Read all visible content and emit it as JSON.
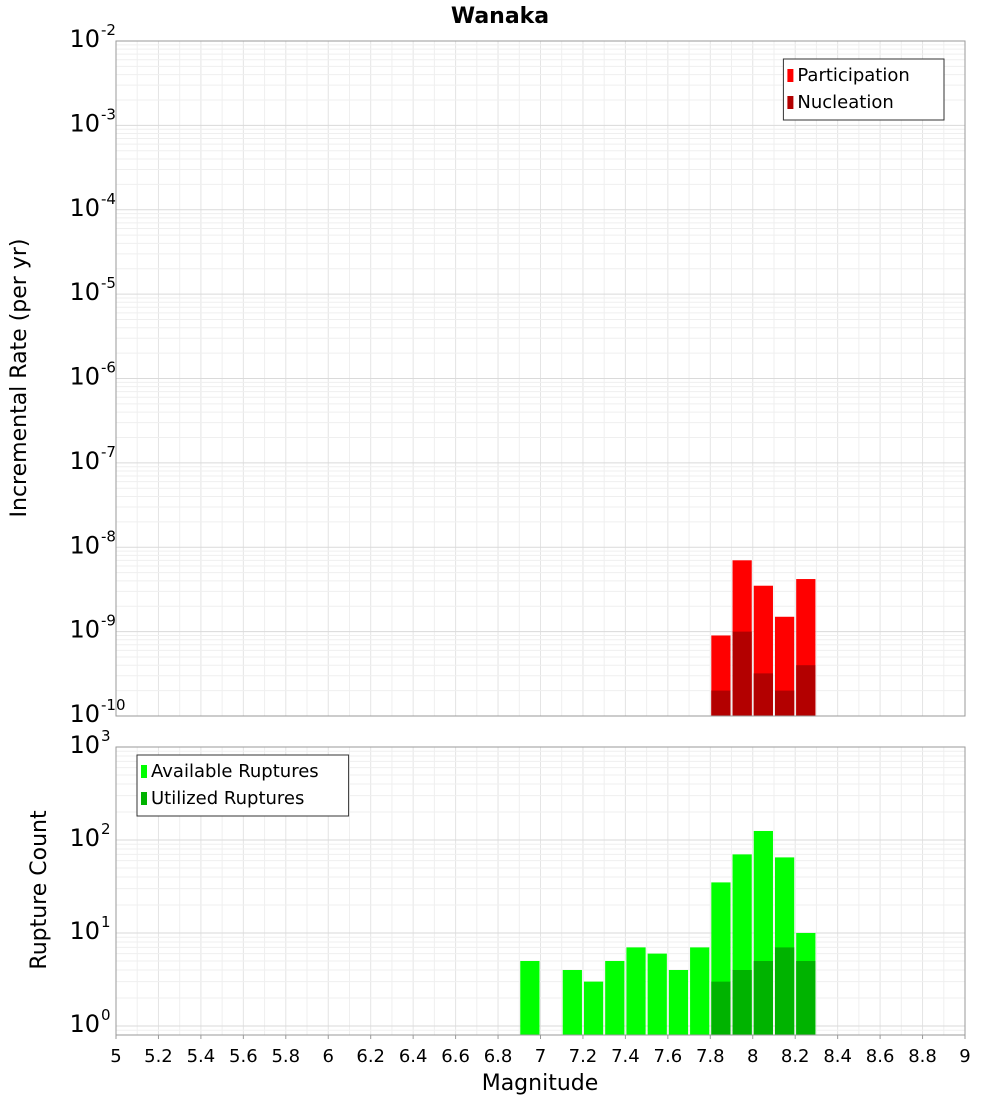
{
  "chart_data": [
    {
      "type": "bar",
      "title": "Wanaka",
      "xlabel": "",
      "ylabel": "Incremental Rate (per yr)",
      "y_scale": "log",
      "ylim": [
        1e-10,
        0.01
      ],
      "xlim": [
        5,
        9
      ],
      "y_tick_labels": [
        {
          "base": "10",
          "exp": "-2",
          "value": 0.01
        },
        {
          "base": "10",
          "exp": "-3",
          "value": 0.001
        },
        {
          "base": "10",
          "exp": "-4",
          "value": 0.0001
        },
        {
          "base": "10",
          "exp": "-5",
          "value": 1e-05
        },
        {
          "base": "10",
          "exp": "-6",
          "value": 1e-06
        },
        {
          "base": "10",
          "exp": "-7",
          "value": 1e-07
        },
        {
          "base": "10",
          "exp": "-8",
          "value": 1e-08
        },
        {
          "base": "10",
          "exp": "-9",
          "value": 1e-09
        },
        {
          "base": "10",
          "exp": "-10",
          "value": 1e-10
        }
      ],
      "bar_width": 0.1,
      "grid": true,
      "legend_position": "top-right",
      "series": [
        {
          "name": "Participation",
          "color": "#ff0000",
          "x": [
            7.85,
            7.95,
            8.05,
            8.15,
            8.25
          ],
          "values": [
            9e-10,
            7e-09,
            3.5e-09,
            1.5e-09,
            4.2e-09
          ]
        },
        {
          "name": "Nucleation",
          "color": "#b30000",
          "x": [
            7.85,
            7.95,
            8.05,
            8.15,
            8.25
          ],
          "values": [
            2e-10,
            1e-09,
            3.2e-10,
            2e-10,
            4e-10
          ]
        }
      ]
    },
    {
      "type": "bar",
      "title": "",
      "xlabel": "Magnitude",
      "ylabel": "Rupture Count",
      "y_scale": "log",
      "ylim": [
        0.8,
        1000
      ],
      "xlim": [
        5,
        9
      ],
      "y_tick_labels": [
        {
          "base": "10",
          "exp": "3",
          "value": 1000
        },
        {
          "base": "10",
          "exp": "2",
          "value": 100
        },
        {
          "base": "10",
          "exp": "1",
          "value": 10
        },
        {
          "base": "10",
          "exp": "0",
          "value": 1
        }
      ],
      "x_tick_labels": [
        "5",
        "5.2",
        "5.4",
        "5.6",
        "5.8",
        "6",
        "6.2",
        "6.4",
        "6.6",
        "6.8",
        "7",
        "7.2",
        "7.4",
        "7.6",
        "7.8",
        "8",
        "8.2",
        "8.4",
        "8.6",
        "8.8",
        "9"
      ],
      "bar_width": 0.1,
      "grid": true,
      "legend_position": "top-left",
      "series": [
        {
          "name": "Available Ruptures",
          "color": "#00ff00",
          "x": [
            6.95,
            7.15,
            7.25,
            7.35,
            7.45,
            7.55,
            7.65,
            7.75,
            7.85,
            7.95,
            8.05,
            8.15,
            8.25
          ],
          "values": [
            5,
            4,
            3,
            5,
            7,
            6,
            4,
            7,
            35,
            70,
            125,
            65,
            10
          ]
        },
        {
          "name": "Utilized Ruptures",
          "color": "#00b300",
          "x": [
            7.85,
            7.95,
            8.05,
            8.15,
            8.25
          ],
          "values": [
            3,
            4,
            5,
            7,
            5
          ]
        }
      ]
    }
  ]
}
